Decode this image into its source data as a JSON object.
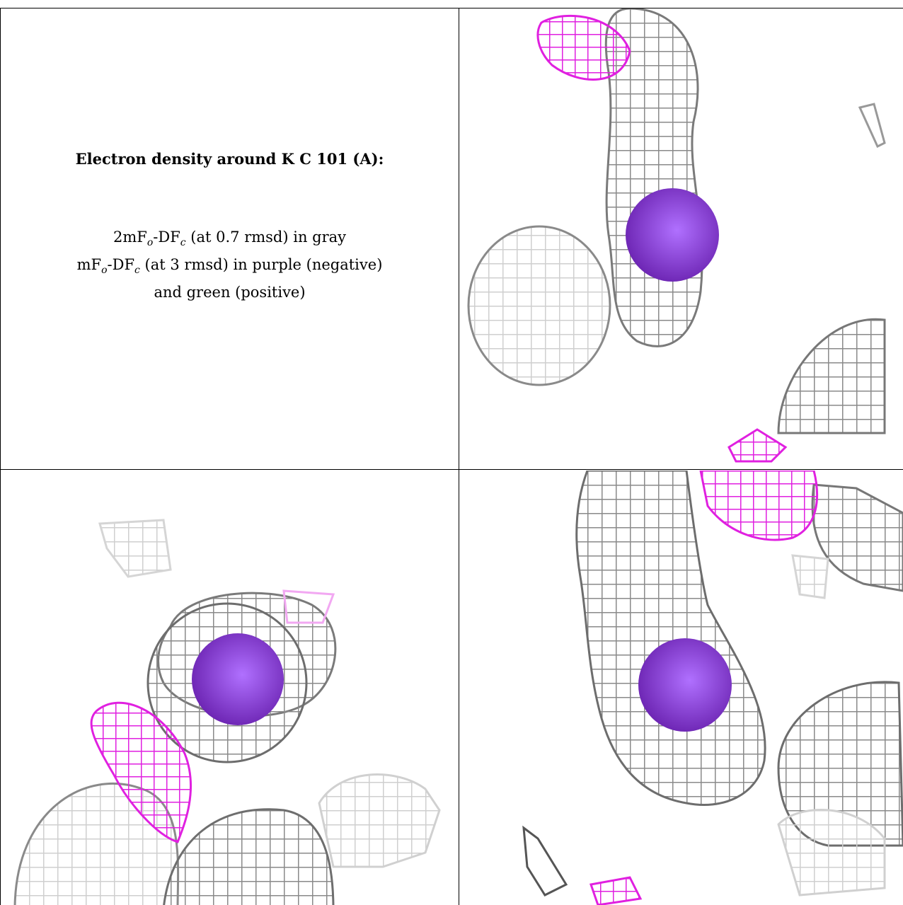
{
  "panel_caption": {
    "title": "Electron density around K C 101 (A):",
    "line1": "2mFₒ-DFᴄ (at 0.7 rmsd) in gray",
    "line2": "mFₒ-DFᴄ (at 3 rmsd) in purple (negative)",
    "line3": "and green (positive)"
  },
  "colors": {
    "mesh_gray": "#8a8a8a",
    "mesh_light": "#d0d0d0",
    "mesh_purple": "#e020e0",
    "atom_sphere": "#7a2fc0",
    "border": "#000000"
  },
  "views": [
    "view-top-right",
    "view-bottom-left",
    "view-bottom-right"
  ]
}
